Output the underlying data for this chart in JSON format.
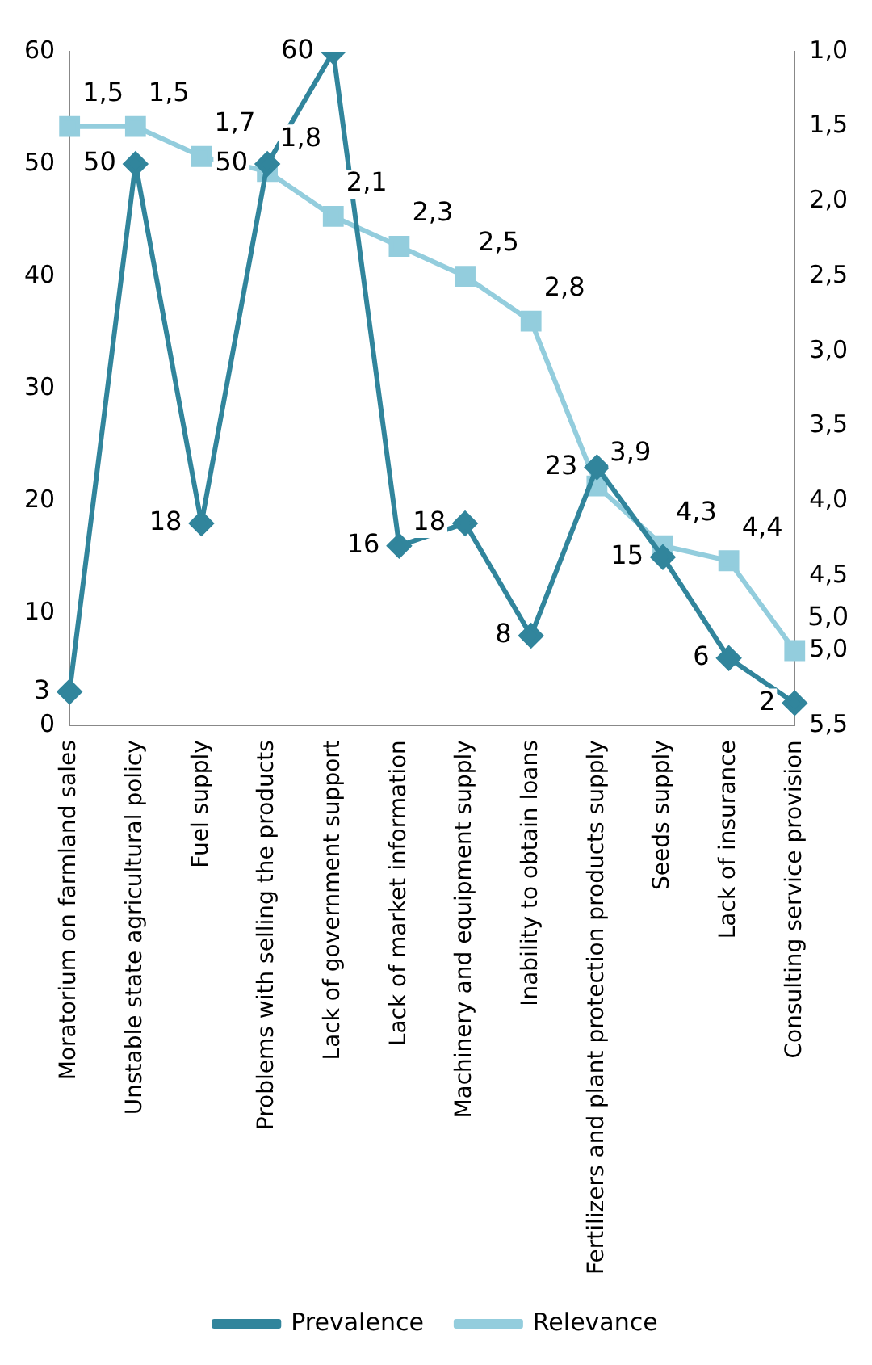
{
  "chart_data": {
    "type": "line",
    "categories": [
      "Moratorium on farmland sales",
      "Unstable state agricultural policy",
      "Fuel supply",
      "Problems with selling the products",
      "Lack of government support",
      "Lack of market information",
      "Machinery and equipment supply",
      "Inability to obtain loans",
      "Fertilizers and plant protection products supply",
      "Seeds supply",
      "Lack of insurance",
      "Consulting service provision"
    ],
    "series": [
      {
        "name": "Prevalence",
        "color": "#31859c",
        "marker": "diamond",
        "values": [
          3,
          50,
          18,
          50,
          60,
          16,
          18,
          8,
          23,
          15,
          6,
          2
        ],
        "value_labels": [
          "3",
          "50",
          "18",
          "50",
          "60",
          "16",
          "18",
          "8",
          "23",
          "15",
          "6",
          "2"
        ]
      },
      {
        "name": "Relevance",
        "color": "#93cddd",
        "marker": "square",
        "axis": "y2",
        "values": [
          1.5,
          1.5,
          1.7,
          1.8,
          2.1,
          2.3,
          2.5,
          2.8,
          3.9,
          4.3,
          4.4,
          5.0
        ],
        "value_labels": [
          "1,5",
          "1,5",
          "1,7",
          "1,8",
          "2,1",
          "2,3",
          "2,5",
          "2,8",
          "3,9",
          "4,3",
          "4,4",
          "5,0"
        ]
      }
    ],
    "ylim": [
      0,
      60
    ],
    "yticks": [
      0,
      10,
      20,
      30,
      40,
      50,
      60
    ],
    "y2lim": [
      5.5,
      1
    ],
    "y2ticks": [
      {
        "value": 1,
        "label": "1,0"
      },
      {
        "value": 1.5,
        "label": "1,5"
      },
      {
        "value": 2,
        "label": "2,0"
      },
      {
        "value": 2.5,
        "label": "2,5"
      },
      {
        "value": 3,
        "label": "3,0"
      },
      {
        "value": 3.5,
        "label": "3,5"
      },
      {
        "value": 4,
        "label": "4,0"
      },
      {
        "value": 4.5,
        "label": "4,5"
      },
      {
        "value": 5,
        "label": "5,0"
      },
      {
        "value": 5.5,
        "label": "5,5"
      }
    ],
    "grid": false,
    "legend": "bottom",
    "line_style": "solid"
  }
}
